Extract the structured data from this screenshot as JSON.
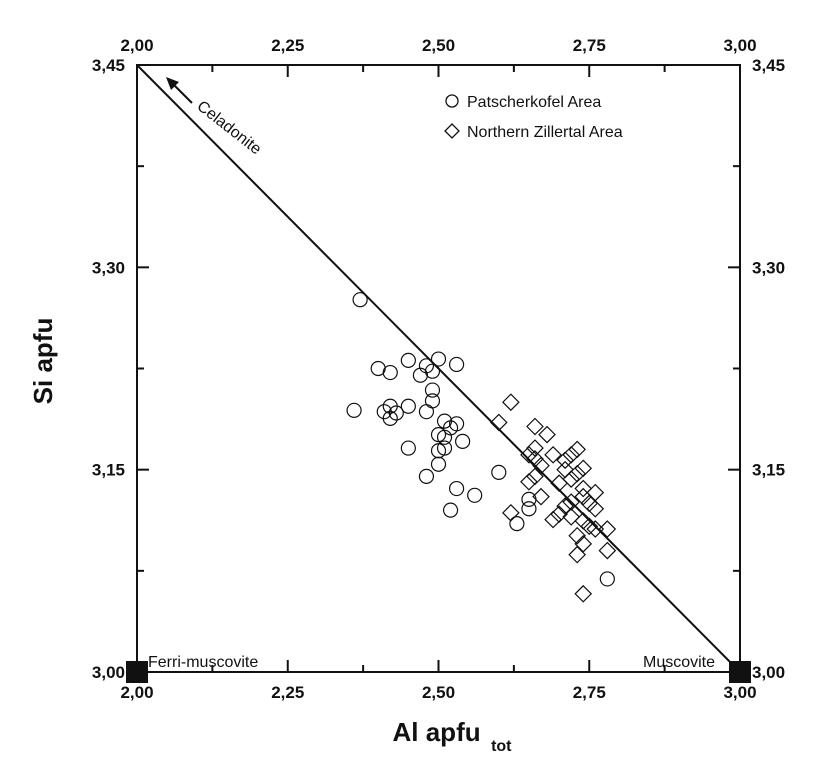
{
  "chart_data": {
    "type": "scatter",
    "xlabel": "Al apfu",
    "xlabel_sub": "tot",
    "ylabel": "Si apfu",
    "xlim": [
      2.0,
      3.0
    ],
    "ylim": [
      3.0,
      3.45
    ],
    "x_ticks": [
      "2,00",
      "2,25",
      "2,50",
      "2,75",
      "3,00"
    ],
    "y_ticks": [
      "3,00",
      "3,15",
      "3,30",
      "3,45"
    ],
    "x_tick_values": [
      2.0,
      2.25,
      2.5,
      2.75,
      3.0
    ],
    "y_tick_values": [
      3.0,
      3.15,
      3.3,
      3.45
    ],
    "legend_position": "top-right",
    "reference_line": {
      "from": [
        2.0,
        3.45
      ],
      "to": [
        3.0,
        3.0
      ]
    },
    "annotations": {
      "celadonite": "Celadonite",
      "ferri_muscovite": "Ferri-muscovite",
      "muscovite": "Muscovite"
    },
    "endmembers": [
      {
        "name": "Ferri-muscovite",
        "x": 2.0,
        "y": 3.0
      },
      {
        "name": "Muscovite",
        "x": 3.0,
        "y": 3.0
      }
    ],
    "series": [
      {
        "name": "Patscherkofel Area",
        "marker": "circle",
        "points": [
          [
            2.37,
            3.276
          ],
          [
            2.4,
            3.225
          ],
          [
            2.42,
            3.222
          ],
          [
            2.45,
            3.231
          ],
          [
            2.47,
            3.22
          ],
          [
            2.48,
            3.227
          ],
          [
            2.5,
            3.232
          ],
          [
            2.53,
            3.228
          ],
          [
            2.49,
            3.223
          ],
          [
            2.49,
            3.209
          ],
          [
            2.49,
            3.201
          ],
          [
            2.45,
            3.197
          ],
          [
            2.42,
            3.197
          ],
          [
            2.43,
            3.192
          ],
          [
            2.41,
            3.193
          ],
          [
            2.42,
            3.188
          ],
          [
            2.36,
            3.194
          ],
          [
            2.48,
            3.193
          ],
          [
            2.51,
            3.186
          ],
          [
            2.53,
            3.184
          ],
          [
            2.52,
            3.181
          ],
          [
            2.5,
            3.176
          ],
          [
            2.51,
            3.174
          ],
          [
            2.54,
            3.171
          ],
          [
            2.45,
            3.166
          ],
          [
            2.5,
            3.164
          ],
          [
            2.51,
            3.166
          ],
          [
            2.5,
            3.154
          ],
          [
            2.48,
            3.145
          ],
          [
            2.53,
            3.136
          ],
          [
            2.56,
            3.131
          ],
          [
            2.52,
            3.12
          ],
          [
            2.6,
            3.148
          ],
          [
            2.65,
            3.128
          ],
          [
            2.63,
            3.11
          ],
          [
            2.65,
            3.121
          ],
          [
            2.78,
            3.069
          ]
        ]
      },
      {
        "name": "Northern Zillertal Area",
        "marker": "diamond",
        "points": [
          [
            2.62,
            3.2
          ],
          [
            2.6,
            3.185
          ],
          [
            2.66,
            3.182
          ],
          [
            2.68,
            3.176
          ],
          [
            2.66,
            3.166
          ],
          [
            2.65,
            3.161
          ],
          [
            2.66,
            3.158
          ],
          [
            2.67,
            3.153
          ],
          [
            2.69,
            3.161
          ],
          [
            2.71,
            3.157
          ],
          [
            2.72,
            3.161
          ],
          [
            2.73,
            3.165
          ],
          [
            2.74,
            3.151
          ],
          [
            2.73,
            3.147
          ],
          [
            2.72,
            3.143
          ],
          [
            2.7,
            3.14
          ],
          [
            2.74,
            3.136
          ],
          [
            2.74,
            3.13
          ],
          [
            2.72,
            3.126
          ],
          [
            2.71,
            3.123
          ],
          [
            2.76,
            3.121
          ],
          [
            2.7,
            3.117
          ],
          [
            2.72,
            3.115
          ],
          [
            2.74,
            3.112
          ],
          [
            2.75,
            3.108
          ],
          [
            2.76,
            3.106
          ],
          [
            2.69,
            3.113
          ],
          [
            2.73,
            3.101
          ],
          [
            2.74,
            3.095
          ],
          [
            2.78,
            3.106
          ],
          [
            2.73,
            3.087
          ],
          [
            2.78,
            3.09
          ],
          [
            2.74,
            3.058
          ],
          [
            2.62,
            3.118
          ],
          [
            2.66,
            3.145
          ],
          [
            2.67,
            3.13
          ],
          [
            2.65,
            3.141
          ],
          [
            2.71,
            3.15
          ],
          [
            2.76,
            3.133
          ],
          [
            2.75,
            3.125
          ]
        ]
      }
    ]
  }
}
